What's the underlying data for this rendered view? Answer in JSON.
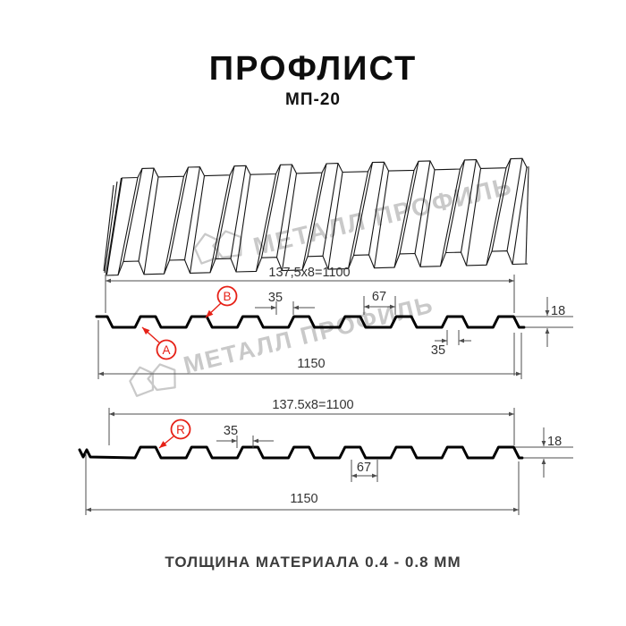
{
  "title": "ПРОФЛИСТ",
  "subtitle": "МП-20",
  "footer": "ТОЛЩИНА МАТЕРИАЛА 0.4 - 0.8 ММ",
  "watermark": "МЕТАЛЛ ПРОФИЛЬ",
  "colors": {
    "profile_line": "#000000",
    "dimension_line": "#4d4d4d",
    "dimension_text": "#333333",
    "accent_red": "#e62117",
    "watermark_gray": "#c9c9c9"
  },
  "profile1": {
    "pitch_label": "137,5x8=1100",
    "dim_rib_width": "35",
    "dim_spacing": "67",
    "dim_height": "18",
    "dim_bottom": "35",
    "dim_total": "1150",
    "marker_a": "А",
    "marker_b": "В"
  },
  "profile2": {
    "pitch_label": "137.5x8=1100",
    "dim_rib_width": "35",
    "dim_spacing": "67",
    "dim_height": "18",
    "dim_total": "1150",
    "marker_r": "R"
  }
}
